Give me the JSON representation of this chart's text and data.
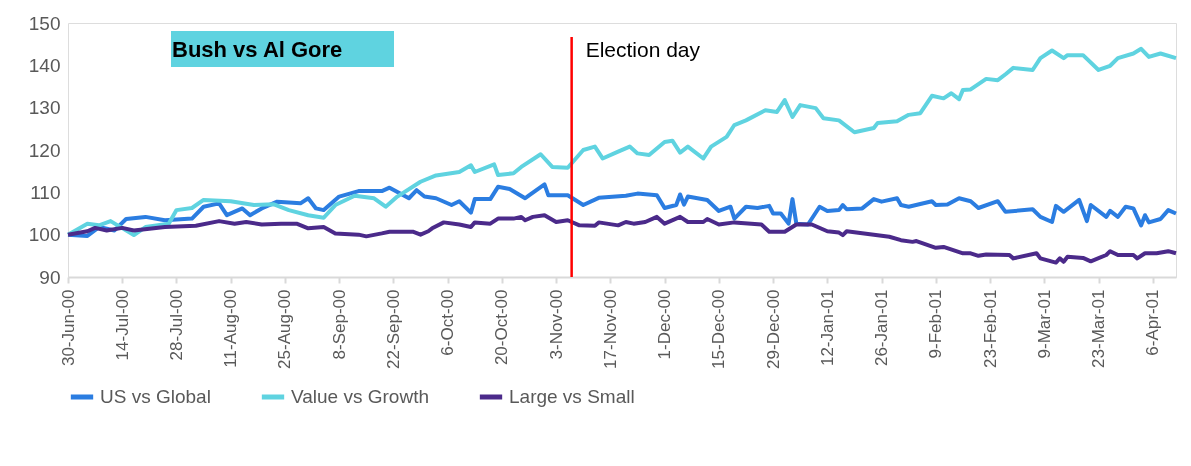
{
  "chart_data": {
    "type": "line",
    "title": "Bush vs Al Gore",
    "legend": "bottom",
    "grid": false,
    "line_style": "solid",
    "marker": "none",
    "xlim": [
      "2000-06-30",
      "2001-04-12"
    ],
    "xticks": [
      {
        "value": "2000-06-30",
        "label": "30-Jun-00"
      },
      {
        "value": "2000-07-14",
        "label": "14-Jul-00"
      },
      {
        "value": "2000-07-28",
        "label": "28-Jul-00"
      },
      {
        "value": "2000-08-11",
        "label": "11-Aug-00"
      },
      {
        "value": "2000-08-25",
        "label": "25-Aug-00"
      },
      {
        "value": "2000-09-08",
        "label": "8-Sep-00"
      },
      {
        "value": "2000-09-22",
        "label": "22-Sep-00"
      },
      {
        "value": "2000-10-06",
        "label": "6-Oct-00"
      },
      {
        "value": "2000-10-20",
        "label": "20-Oct-00"
      },
      {
        "value": "2000-11-03",
        "label": "3-Nov-00"
      },
      {
        "value": "2000-11-17",
        "label": "17-Nov-00"
      },
      {
        "value": "2000-12-01",
        "label": "1-Dec-00"
      },
      {
        "value": "2000-12-15",
        "label": "15-Dec-00"
      },
      {
        "value": "2000-12-29",
        "label": "29-Dec-00"
      },
      {
        "value": "2001-01-12",
        "label": "12-Jan-01"
      },
      {
        "value": "2001-01-26",
        "label": "26-Jan-01"
      },
      {
        "value": "2001-02-09",
        "label": "9-Feb-01"
      },
      {
        "value": "2001-02-23",
        "label": "23-Feb-01"
      },
      {
        "value": "2001-03-09",
        "label": "9-Mar-01"
      },
      {
        "value": "2001-03-23",
        "label": "23-Mar-01"
      },
      {
        "value": "2001-04-06",
        "label": "6-Apr-01"
      }
    ],
    "ylim": [
      90,
      150
    ],
    "yticks": [
      90,
      100,
      110,
      120,
      130,
      140,
      150
    ],
    "ref_lines": [
      {
        "axis": "x",
        "value": "2000-11-07",
        "label": "Election day",
        "color": "#ff0000"
      }
    ],
    "series": [
      {
        "name": "US vs Global",
        "color": "#2b7de1",
        "x": [
          "2000-06-30",
          "2000-07-05",
          "2000-07-08",
          "2000-07-12",
          "2000-07-15",
          "2000-07-20",
          "2000-07-25",
          "2000-08-01",
          "2000-08-04",
          "2000-08-08",
          "2000-08-10",
          "2000-08-14",
          "2000-08-16",
          "2000-08-19",
          "2000-08-23",
          "2000-08-29",
          "2000-08-31",
          "2000-09-02",
          "2000-09-04",
          "2000-09-08",
          "2000-09-13",
          "2000-09-19",
          "2000-09-21",
          "2000-09-26",
          "2000-09-28",
          "2000-09-30",
          "2000-10-03",
          "2000-10-07",
          "2000-10-09",
          "2000-10-12",
          "2000-10-13",
          "2000-10-17",
          "2000-10-19",
          "2000-10-22",
          "2000-10-26",
          "2000-10-27",
          "2000-10-31",
          "2000-11-01",
          "2000-11-06",
          "2000-11-10",
          "2000-11-14",
          "2000-11-21",
          "2000-11-24",
          "2000-11-29",
          "2000-12-01",
          "2000-12-04",
          "2000-12-05",
          "2000-12-06",
          "2000-12-07",
          "2000-12-12",
          "2000-12-15",
          "2000-12-18",
          "2000-12-19",
          "2000-12-22",
          "2000-12-25",
          "2000-12-28",
          "2000-12-29",
          "2000-12-31",
          "2001-01-02",
          "2001-01-03",
          "2001-01-04",
          "2001-01-07",
          "2001-01-10",
          "2001-01-12",
          "2001-01-15",
          "2001-01-16",
          "2001-01-17",
          "2001-01-21",
          "2001-01-24",
          "2001-01-26",
          "2001-01-30",
          "2001-01-31",
          "2001-02-02",
          "2001-02-08",
          "2001-02-09",
          "2001-02-12",
          "2001-02-15",
          "2001-02-18",
          "2001-02-20",
          "2001-02-25",
          "2001-02-27",
          "2001-03-06",
          "2001-03-08",
          "2001-03-11",
          "2001-03-12",
          "2001-03-14",
          "2001-03-18",
          "2001-03-20",
          "2001-03-21",
          "2001-03-25",
          "2001-03-26",
          "2001-03-28",
          "2001-03-30",
          "2001-04-01",
          "2001-04-03",
          "2001-04-04",
          "2001-04-05",
          "2001-04-08",
          "2001-04-10",
          "2001-04-12"
        ],
        "values": [
          100,
          99.7,
          101.8,
          101,
          103.7,
          104.2,
          103.4,
          103.8,
          106.6,
          107.4,
          104.6,
          106.2,
          104.6,
          106.2,
          107.8,
          107.4,
          108.6,
          106.2,
          105.8,
          109,
          110.3,
          110.3,
          111.1,
          108.6,
          110.5,
          109,
          108.6,
          107,
          107.9,
          105.2,
          108.4,
          108.4,
          111.3,
          110.8,
          108.6,
          109.3,
          111.9,
          109.3,
          109.3,
          107,
          108.7,
          109.2,
          109.7,
          109.3,
          106.3,
          107,
          109.5,
          107.1,
          109,
          108.2,
          105.6,
          106.6,
          103.8,
          106.6,
          106.3,
          106.8,
          105,
          105,
          102.6,
          108.4,
          102.6,
          102.4,
          106.6,
          105.6,
          105.8,
          107,
          106,
          106.2,
          108.4,
          107.8,
          108.6,
          107,
          106.6,
          107.9,
          107,
          107.1,
          108.6,
          107.9,
          106.3,
          107.9,
          105.4,
          106,
          104.2,
          103,
          106.8,
          105.4,
          108.2,
          103.2,
          107,
          104.2,
          105.6,
          104.2,
          106.6,
          106.2,
          102.2,
          104.6,
          102.9,
          103.7,
          105.8,
          105
        ]
      },
      {
        "name": "Value vs Growth",
        "color": "#5fd3e0",
        "x": [
          "2000-06-30",
          "2000-07-05",
          "2000-07-08",
          "2000-07-11",
          "2000-07-17",
          "2000-07-20",
          "2000-07-26",
          "2000-07-28",
          "2000-08-01",
          "2000-08-04",
          "2000-08-11",
          "2000-08-17",
          "2000-08-22",
          "2000-08-26",
          "2000-08-31",
          "2000-09-04",
          "2000-09-07",
          "2000-09-12",
          "2000-09-17",
          "2000-09-20",
          "2000-09-23",
          "2000-09-29",
          "2000-10-03",
          "2000-10-09",
          "2000-10-12",
          "2000-10-13",
          "2000-10-18",
          "2000-10-19",
          "2000-10-23",
          "2000-10-25",
          "2000-10-30",
          "2000-11-02",
          "2000-11-06",
          "2000-11-10",
          "2000-11-13",
          "2000-11-15",
          "2000-11-19",
          "2000-11-22",
          "2000-11-24",
          "2000-11-27",
          "2000-12-01",
          "2000-12-03",
          "2000-12-05",
          "2000-12-07",
          "2000-12-11",
          "2000-12-13",
          "2000-12-17",
          "2000-12-19",
          "2000-12-22",
          "2000-12-27",
          "2000-12-30",
          "2001-01-01",
          "2001-01-03",
          "2001-01-05",
          "2001-01-09",
          "2001-01-11",
          "2001-01-15",
          "2001-01-19",
          "2001-01-24",
          "2001-01-25",
          "2001-01-30",
          "2001-02-02",
          "2001-02-05",
          "2001-02-08",
          "2001-02-11",
          "2001-02-13",
          "2001-02-15",
          "2001-02-16",
          "2001-02-18",
          "2001-02-22",
          "2001-02-25",
          "2001-02-27",
          "2001-03-01",
          "2001-03-06",
          "2001-03-08",
          "2001-03-11",
          "2001-03-14",
          "2001-03-15",
          "2001-03-19",
          "2001-03-23",
          "2001-03-26",
          "2001-03-28",
          "2001-04-01",
          "2001-04-03",
          "2001-04-05",
          "2001-04-08",
          "2001-04-12"
        ],
        "values": [
          100,
          102.6,
          102.2,
          103.2,
          99.9,
          101.8,
          102.6,
          105.8,
          106.3,
          108.2,
          107.9,
          107,
          107.2,
          105.8,
          104.6,
          104,
          107,
          109.2,
          108.6,
          106.6,
          109,
          112.5,
          114,
          114.8,
          116.4,
          114.8,
          116.6,
          114.1,
          114.5,
          116,
          119,
          116,
          115.8,
          120,
          120.8,
          118,
          119.6,
          120.8,
          119.2,
          118.8,
          121.9,
          122.2,
          119.4,
          120.8,
          118,
          120.8,
          123.1,
          125.9,
          127,
          129.4,
          129,
          131.8,
          127.8,
          130.6,
          129.9,
          127.5,
          127,
          124.2,
          125.2,
          126.4,
          126.8,
          128.3,
          128.7,
          132.8,
          132.2,
          133.4,
          132,
          134.2,
          134.3,
          136.8,
          136.5,
          137.9,
          139.4,
          138.9,
          141.7,
          143.5,
          141.7,
          142.4,
          142.4,
          138.9,
          139.9,
          141.7,
          142.8,
          143.9,
          142,
          142.8,
          141.7
        ]
      },
      {
        "name": "Large vs Small",
        "color": "#4b2a8a",
        "x": [
          "2000-06-30",
          "2000-07-05",
          "2000-07-07",
          "2000-07-10",
          "2000-07-14",
          "2000-07-17",
          "2000-07-25",
          "2000-08-02",
          "2000-08-08",
          "2000-08-12",
          "2000-08-15",
          "2000-08-19",
          "2000-08-24",
          "2000-08-28",
          "2000-08-31",
          "2000-09-04",
          "2000-09-07",
          "2000-09-13",
          "2000-09-15",
          "2000-09-19",
          "2000-09-21",
          "2000-09-27",
          "2000-09-29",
          "2000-10-01",
          "2000-10-02",
          "2000-10-05",
          "2000-10-09",
          "2000-10-12",
          "2000-10-13",
          "2000-10-17",
          "2000-10-19",
          "2000-10-23",
          "2000-10-25",
          "2000-10-26",
          "2000-10-28",
          "2000-10-31",
          "2000-11-03",
          "2000-11-06",
          "2000-11-09",
          "2000-11-13",
          "2000-11-14",
          "2000-11-19",
          "2000-11-21",
          "2000-11-23",
          "2000-11-26",
          "2000-11-29",
          "2000-12-01",
          "2000-12-05",
          "2000-12-07",
          "2000-12-11",
          "2000-12-12",
          "2000-12-15",
          "2000-12-19",
          "2000-12-26",
          "2000-12-28",
          "2001-01-01",
          "2001-01-04",
          "2001-01-08",
          "2001-01-12",
          "2001-01-15",
          "2001-01-16",
          "2001-01-17",
          "2001-01-24",
          "2001-01-28",
          "2001-01-31",
          "2001-02-03",
          "2001-02-04",
          "2001-02-09",
          "2001-02-11",
          "2001-02-16",
          "2001-02-18",
          "2001-02-20",
          "2001-02-22",
          "2001-02-28",
          "2001-03-01",
          "2001-03-07",
          "2001-03-08",
          "2001-03-12",
          "2001-03-13",
          "2001-03-14",
          "2001-03-15",
          "2001-03-19",
          "2001-03-21",
          "2001-03-25",
          "2001-03-26",
          "2001-03-28",
          "2001-04-01",
          "2001-04-02",
          "2001-04-04",
          "2001-04-07",
          "2001-04-10",
          "2001-04-12"
        ],
        "values": [
          100,
          100.8,
          101.6,
          101,
          101.6,
          101,
          101.8,
          102.1,
          103.2,
          102.6,
          103,
          102.4,
          102.6,
          102.6,
          101.5,
          101.8,
          100.3,
          100,
          99.6,
          100.3,
          100.7,
          100.7,
          100,
          100.8,
          101.5,
          102.9,
          102.4,
          101.8,
          102.9,
          102.6,
          103.8,
          103.8,
          104.2,
          103.4,
          104.2,
          104.6,
          103,
          103.4,
          102.2,
          102.1,
          102.9,
          102.2,
          103,
          102.6,
          103,
          104.2,
          102.6,
          104.2,
          103,
          103,
          103.7,
          102.4,
          102.9,
          102.4,
          100.7,
          100.7,
          102.4,
          102.4,
          100.8,
          100.5,
          99.9,
          100.8,
          100,
          99.5,
          98.7,
          98.3,
          98.5,
          96.9,
          97.1,
          95.6,
          95.6,
          95,
          95.3,
          95.2,
          94.4,
          95.6,
          94.4,
          93.4,
          94.4,
          93.6,
          94.8,
          94.5,
          93.7,
          95.2,
          96.1,
          95.2,
          95.2,
          94.4,
          95.6,
          95.6,
          96.1,
          95.6
        ]
      }
    ]
  }
}
